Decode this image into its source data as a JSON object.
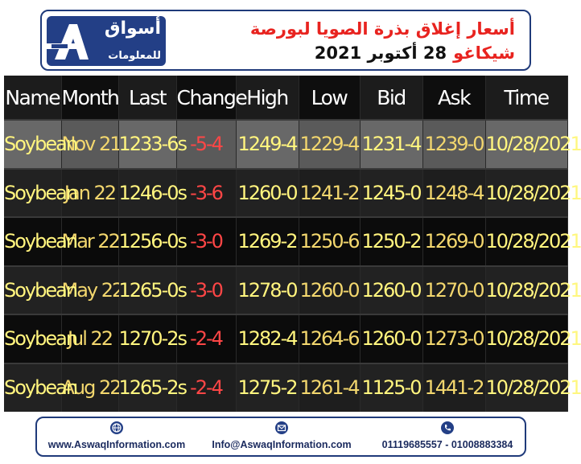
{
  "header": {
    "logo_name": "أسواق",
    "logo_subtitle": "للمعلومات",
    "title_line1": "أسعار إغلاق بذرة الصويا لبورصة",
    "title_market": "شيكاغو",
    "title_date": "28 أكتوبر 2021",
    "accent_color": "#e8231f",
    "brand_color": "#233f86"
  },
  "table": {
    "columns": [
      "Name",
      "Month",
      "Last",
      "Change",
      "High",
      "Low",
      "Bid",
      "Ask",
      "Time"
    ],
    "rows": [
      [
        "Soybean",
        "Nov 21",
        "1233-6s",
        "-5-4",
        "1249-4",
        "1229-4",
        "1231-4",
        "1239-0",
        "10/28/2021"
      ],
      [
        "Soybean",
        "Jan 22",
        "1246-0s",
        "-3-6",
        "1260-0",
        "1241-2",
        "1245-0",
        "1248-4",
        "10/28/2021"
      ],
      [
        "Soybean",
        "Mar 22",
        "1256-0s",
        "-3-0",
        "1269-2",
        "1250-6",
        "1250-2",
        "1269-0",
        "10/28/2021"
      ],
      [
        "Soybean",
        "May 22",
        "1265-0s",
        "-3-0",
        "1278-0",
        "1260-0",
        "1260-0",
        "1270-0",
        "10/28/2021"
      ],
      [
        "Soybean",
        "Jul 22",
        "1270-2s",
        "-2-4",
        "1282-4",
        "1264-6",
        "1260-0",
        "1273-0",
        "10/28/2021"
      ],
      [
        "Soybean",
        "Aug 22",
        "1265-2s",
        "-2-4",
        "1275-2",
        "1261-4",
        "1125-0",
        "1441-2",
        "10/28/2021"
      ]
    ],
    "value_color": "#f3d76e",
    "negative_color": "#ff4646"
  },
  "footer": {
    "website": "www.AswaqInformation.com",
    "email": "Info@AswaqInformation.com",
    "phone": "01119685557 - 01008883384",
    "website_icon": "globe-icon",
    "email_icon": "envelope-icon",
    "phone_icon": "phone-icon"
  }
}
